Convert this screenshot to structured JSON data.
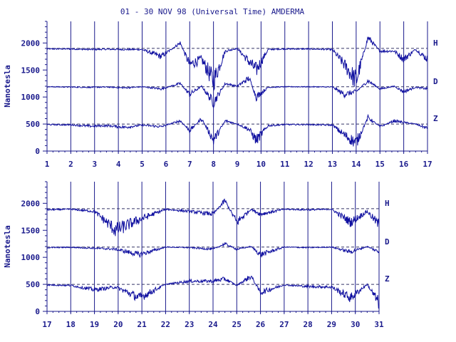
{
  "title": "01 - 30 NOV 98 (Universal Time) AMDERMA",
  "chart_data": [
    {
      "type": "line",
      "ylabel": "Nanotesla",
      "ylim": [
        0,
        2400
      ],
      "yticks": [
        0,
        500,
        1000,
        1500,
        2000
      ],
      "xlim": [
        1,
        17
      ],
      "xticks": [
        1,
        2,
        3,
        4,
        5,
        6,
        7,
        8,
        9,
        10,
        11,
        12,
        13,
        14,
        15,
        16,
        17
      ],
      "grid": "vertical day lines",
      "series": [
        {
          "name": "H",
          "baseline": 1900,
          "x": [
            1,
            2,
            2.8,
            3.5,
            4.3,
            5.0,
            5.8,
            6.6,
            7.0,
            7.5,
            8.0,
            8.5,
            9.0,
            9.5,
            9.8,
            10.3,
            11,
            12,
            13,
            13.5,
            14,
            14.5,
            15,
            15.6,
            16,
            16.5,
            17
          ],
          "values": [
            1890,
            1890,
            1880,
            1885,
            1880,
            1880,
            1750,
            2000,
            1600,
            1700,
            1300,
            1850,
            1900,
            1650,
            1500,
            1880,
            1890,
            1890,
            1880,
            1600,
            1300,
            2100,
            1850,
            1850,
            1700,
            1880,
            1700
          ]
        },
        {
          "name": "D",
          "baseline": 1190,
          "x": [
            1,
            2,
            2.8,
            3.5,
            4.3,
            5.0,
            5.8,
            6.6,
            7.0,
            7.5,
            8.0,
            8.5,
            9.0,
            9.5,
            9.8,
            10.3,
            11,
            12,
            13,
            13.5,
            14,
            14.5,
            15,
            15.6,
            16,
            16.5,
            17
          ],
          "values": [
            1190,
            1185,
            1180,
            1185,
            1170,
            1190,
            1150,
            1250,
            1050,
            1200,
            900,
            1250,
            1200,
            1350,
            1000,
            1180,
            1190,
            1190,
            1185,
            1050,
            1100,
            1300,
            1150,
            1200,
            1100,
            1180,
            1150
          ]
        },
        {
          "name": "Z",
          "baseline": 500,
          "x": [
            1,
            2,
            2.8,
            3.5,
            4.3,
            5.0,
            5.8,
            6.6,
            7.0,
            7.5,
            8.0,
            8.5,
            9.0,
            9.5,
            9.8,
            10.3,
            11,
            12,
            13,
            13.5,
            14,
            14.5,
            15,
            15.6,
            16,
            16.5,
            17
          ],
          "values": [
            490,
            485,
            460,
            470,
            440,
            480,
            450,
            560,
            380,
            600,
            200,
            560,
            500,
            400,
            200,
            470,
            490,
            490,
            480,
            300,
            150,
            620,
            450,
            560,
            530,
            500,
            420
          ]
        }
      ],
      "component_labels": [
        "H",
        "D",
        "Z"
      ]
    },
    {
      "type": "line",
      "ylabel": "Nanotesla",
      "ylim": [
        0,
        2400
      ],
      "yticks": [
        0,
        500,
        1000,
        1500,
        2000
      ],
      "xlim": [
        17,
        31
      ],
      "xticks": [
        17,
        18,
        19,
        20,
        21,
        22,
        23,
        24,
        25,
        26,
        27,
        28,
        29,
        30,
        31
      ],
      "grid": "vertical day lines",
      "series": [
        {
          "name": "H",
          "baseline": 1900,
          "x": [
            17,
            18,
            19,
            19.9,
            20.9,
            22,
            23,
            24,
            24.5,
            25,
            25.6,
            26,
            27,
            28,
            29,
            29.8,
            30.5,
            31
          ],
          "values": [
            1880,
            1890,
            1850,
            1500,
            1700,
            1890,
            1850,
            1800,
            2050,
            1650,
            1890,
            1800,
            1890,
            1880,
            1890,
            1650,
            1850,
            1600
          ]
        },
        {
          "name": "D",
          "baseline": 1190,
          "x": [
            17,
            18,
            19,
            19.9,
            20.9,
            22,
            23,
            24,
            24.5,
            25,
            25.6,
            26,
            27,
            28,
            29,
            29.8,
            30.5,
            31
          ],
          "values": [
            1180,
            1185,
            1170,
            1150,
            1050,
            1190,
            1180,
            1150,
            1250,
            1150,
            1200,
            1050,
            1190,
            1180,
            1190,
            1100,
            1200,
            1100
          ]
        },
        {
          "name": "Z",
          "baseline": 500,
          "x": [
            17,
            18,
            19,
            19.9,
            20.9,
            22,
            23,
            24,
            24.5,
            25,
            25.6,
            26,
            27,
            28,
            29,
            29.8,
            30.5,
            31
          ],
          "values": [
            490,
            480,
            400,
            450,
            250,
            500,
            560,
            560,
            600,
            480,
            650,
            350,
            490,
            460,
            450,
            250,
            500,
            150
          ]
        }
      ],
      "component_labels": [
        "H",
        "D",
        "Z"
      ]
    }
  ]
}
